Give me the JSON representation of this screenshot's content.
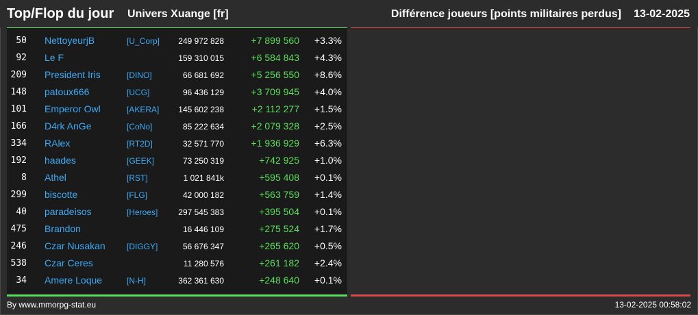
{
  "header": {
    "title": "Top/Flop du jour",
    "universe": "Univers Xuange [fr]",
    "subtitle": "Différence joueurs [points militaires perdus]",
    "date": "13-02-2025"
  },
  "colors": {
    "background": "#2c2c2c",
    "panel": "#1a1a1a",
    "name": "#3ea9f5",
    "gain": "#5cde5c",
    "loss_line": "#d64c4c"
  },
  "top": [
    {
      "rank": "50",
      "name": "NettoyeurjB",
      "guild": "[U_Corp]",
      "points": "249 972 828",
      "diff": "+7 899 560",
      "pct": "+3.3%"
    },
    {
      "rank": "92",
      "name": "Le F",
      "guild": "",
      "points": "159 310 015",
      "diff": "+6 584 843",
      "pct": "+4.3%"
    },
    {
      "rank": "209",
      "name": "President Iris",
      "guild": "[DINO]",
      "points": "66 681 692",
      "diff": "+5 256 550",
      "pct": "+8.6%"
    },
    {
      "rank": "148",
      "name": "patoux666",
      "guild": "[UCG]",
      "points": "96 436 129",
      "diff": "+3 709 945",
      "pct": "+4.0%"
    },
    {
      "rank": "101",
      "name": "Emperor Owl",
      "guild": "[AKERA]",
      "points": "145 602 238",
      "diff": "+2 112 277",
      "pct": "+1.5%"
    },
    {
      "rank": "166",
      "name": "D4rk AnGe",
      "guild": "[CoNo]",
      "points": "85 222 634",
      "diff": "+2 079 328",
      "pct": "+2.5%"
    },
    {
      "rank": "334",
      "name": "RAlex",
      "guild": "[RT2D]",
      "points": "32 571 770",
      "diff": "+1 936 929",
      "pct": "+6.3%"
    },
    {
      "rank": "192",
      "name": "haades",
      "guild": "[GEEK]",
      "points": "73 250 319",
      "diff": "+742 925",
      "pct": "+1.0%"
    },
    {
      "rank": "8",
      "name": "Athel",
      "guild": "[RST]",
      "points": "1 021 841k",
      "diff": "+595 408",
      "pct": "+0.1%"
    },
    {
      "rank": "299",
      "name": "biscotte",
      "guild": "[FLG]",
      "points": "42 000 182",
      "diff": "+563 759",
      "pct": "+1.4%"
    },
    {
      "rank": "40",
      "name": "paradeisos",
      "guild": "[Heroes]",
      "points": "297 545 383",
      "diff": "+395 504",
      "pct": "+0.1%"
    },
    {
      "rank": "475",
      "name": "Brandon",
      "guild": "",
      "points": "16 446 109",
      "diff": "+275 524",
      "pct": "+1.7%"
    },
    {
      "rank": "246",
      "name": "Czar Nusakan",
      "guild": "[DIGGY]",
      "points": "56 676 347",
      "diff": "+265 620",
      "pct": "+0.5%"
    },
    {
      "rank": "538",
      "name": "Czar Ceres",
      "guild": "",
      "points": "11 280 576",
      "diff": "+261 182",
      "pct": "+2.4%"
    },
    {
      "rank": "34",
      "name": "Amere Loque",
      "guild": "[N-H]",
      "points": "362 361 630",
      "diff": "+248 640",
      "pct": "+0.1%"
    }
  ],
  "footer": {
    "source": "By www.mmorpg-stat.eu",
    "timestamp": "13-02-2025 00:58:02"
  }
}
